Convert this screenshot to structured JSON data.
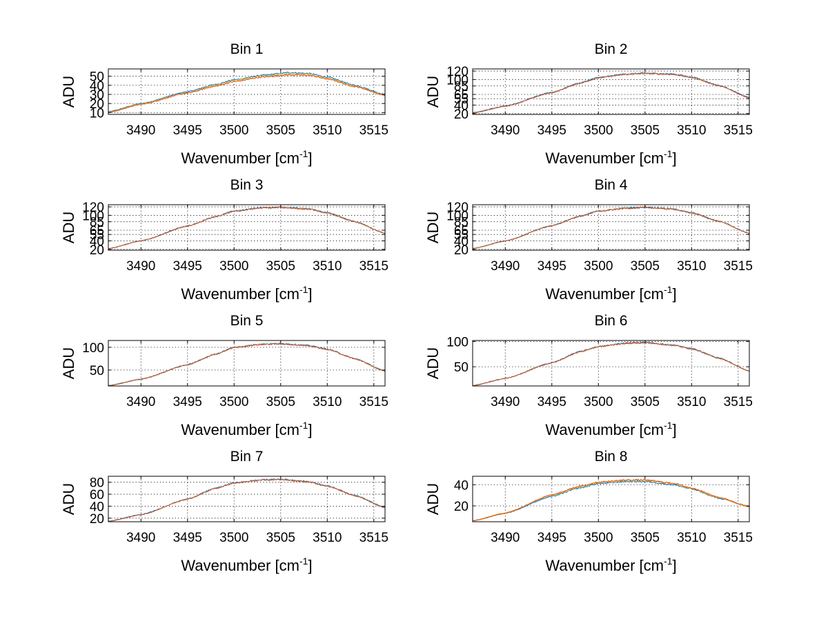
{
  "chart_data": [
    {
      "type": "line",
      "title": "Bin 1",
      "xlabel": "Wavenumber [cm",
      "xlabel_sup": "-1",
      "xlabel_close": "]",
      "ylabel": "ADU",
      "xlim": [
        3486.5,
        3516.2
      ],
      "ylim": [
        8,
        58
      ],
      "xticks": [
        3490,
        3495,
        3500,
        3505,
        3510,
        3515
      ],
      "yticks": [
        10,
        20,
        30,
        40,
        50
      ],
      "grid": true,
      "series": [
        {
          "color": "#0072bd",
          "x": [
            3486.5,
            3490,
            3495,
            3498,
            3500,
            3503,
            3506,
            3508,
            3510,
            3513,
            3516.2
          ],
          "y": [
            11,
            20,
            33,
            41,
            46,
            51,
            54,
            53,
            49,
            40,
            30
          ]
        },
        {
          "color": "#edb120",
          "x": [
            3486.5,
            3490,
            3495,
            3498,
            3500,
            3503,
            3506,
            3508,
            3510,
            3513,
            3516.2
          ],
          "y": [
            10.5,
            19.5,
            32,
            40,
            45,
            50,
            52.5,
            52,
            48,
            39,
            29.5
          ]
        },
        {
          "color": "#d95319",
          "x": [
            3486.5,
            3490,
            3495,
            3498,
            3500,
            3503,
            3506,
            3508,
            3510,
            3513,
            3516.2
          ],
          "y": [
            10,
            19,
            31.5,
            39,
            44,
            49,
            51.5,
            51,
            47,
            38.5,
            29
          ]
        }
      ]
    },
    {
      "type": "line",
      "title": "Bin 2",
      "xlabel": "Wavenumber [cm",
      "xlabel_sup": "-1",
      "xlabel_close": "]",
      "ylabel": "ADU",
      "xlim": [
        3486.5,
        3516.2
      ],
      "ylim": [
        18,
        125
      ],
      "xticks": [
        3490,
        3495,
        3500,
        3505,
        3510,
        3515
      ],
      "yticks": [
        20,
        40,
        55,
        65,
        85,
        100,
        120
      ],
      "grid": true,
      "series": [
        {
          "color": "#0072bd",
          "x": [
            3486.5,
            3490,
            3495,
            3498,
            3500,
            3503,
            3505,
            3508,
            3510,
            3513,
            3516.2
          ],
          "y": [
            22,
            38,
            70,
            92,
            105,
            113,
            115,
            113,
            106,
            86,
            58
          ]
        },
        {
          "color": "#d95319",
          "x": [
            3486.5,
            3490,
            3495,
            3498,
            3500,
            3503,
            3505,
            3508,
            3510,
            3513,
            3516.2
          ],
          "y": [
            21,
            37,
            69,
            91,
            104,
            112,
            114,
            112,
            105,
            85,
            57
          ]
        }
      ]
    },
    {
      "type": "line",
      "title": "Bin 3",
      "xlabel": "Wavenumber [cm",
      "xlabel_sup": "-1",
      "xlabel_close": "]",
      "ylabel": "ADU",
      "xlim": [
        3486.5,
        3516.2
      ],
      "ylim": [
        18,
        125
      ],
      "xticks": [
        3490,
        3495,
        3500,
        3505,
        3510,
        3515
      ],
      "yticks": [
        20,
        40,
        55,
        65,
        85,
        100,
        120
      ],
      "grid": true,
      "series": [
        {
          "color": "#0072bd",
          "x": [
            3486.5,
            3490,
            3495,
            3498,
            3500,
            3503,
            3505,
            3508,
            3510,
            3513,
            3516.2
          ],
          "y": [
            22,
            40,
            75,
            97,
            110,
            118,
            119,
            115,
            106,
            85,
            58
          ]
        },
        {
          "color": "#d95319",
          "x": [
            3486.5,
            3490,
            3495,
            3498,
            3500,
            3503,
            3505,
            3508,
            3510,
            3513,
            3516.2
          ],
          "y": [
            21.5,
            39.5,
            74.5,
            96.5,
            109.5,
            117.5,
            118.5,
            114.5,
            105.5,
            84.5,
            57.5
          ]
        }
      ]
    },
    {
      "type": "line",
      "title": "Bin 4",
      "xlabel": "Wavenumber [cm",
      "xlabel_sup": "-1",
      "xlabel_close": "]",
      "ylabel": "ADU",
      "xlim": [
        3486.5,
        3516.2
      ],
      "ylim": [
        18,
        125
      ],
      "xticks": [
        3490,
        3495,
        3500,
        3505,
        3510,
        3515
      ],
      "yticks": [
        20,
        40,
        55,
        65,
        85,
        100,
        120
      ],
      "grid": true,
      "series": [
        {
          "color": "#0072bd",
          "x": [
            3486.5,
            3490,
            3495,
            3498,
            3500,
            3503,
            3505,
            3508,
            3510,
            3513,
            3516.2
          ],
          "y": [
            22,
            40,
            76,
            98,
            110,
            117,
            119,
            115,
            106,
            86,
            58
          ]
        },
        {
          "color": "#d95319",
          "x": [
            3486.5,
            3490,
            3495,
            3498,
            3500,
            3503,
            3505,
            3508,
            3510,
            3513,
            3516.2
          ],
          "y": [
            21.5,
            39.5,
            75.5,
            97.5,
            109.5,
            116.5,
            118.5,
            114.5,
            105.5,
            85.5,
            57.5
          ]
        }
      ]
    },
    {
      "type": "line",
      "title": "Bin 5",
      "xlabel": "Wavenumber [cm",
      "xlabel_sup": "-1",
      "xlabel_close": "]",
      "ylabel": "ADU",
      "xlim": [
        3486.5,
        3516.2
      ],
      "ylim": [
        15,
        115
      ],
      "xticks": [
        3490,
        3495,
        3500,
        3505,
        3510,
        3515
      ],
      "yticks": [
        50,
        100
      ],
      "grid": true,
      "series": [
        {
          "color": "#0072bd",
          "x": [
            3486.5,
            3490,
            3495,
            3498,
            3500,
            3503,
            3505,
            3508,
            3510,
            3513,
            3516.2
          ],
          "y": [
            16,
            30,
            62,
            85,
            100,
            107,
            108,
            104,
            96,
            75,
            48
          ]
        },
        {
          "color": "#d95319",
          "x": [
            3486.5,
            3490,
            3495,
            3498,
            3500,
            3503,
            3505,
            3508,
            3510,
            3513,
            3516.2
          ],
          "y": [
            15.5,
            29.5,
            61.5,
            84.5,
            99.5,
            106.5,
            107.5,
            103.5,
            95.5,
            74.5,
            47.5
          ]
        }
      ]
    },
    {
      "type": "line",
      "title": "Bin 6",
      "xlabel": "Wavenumber [cm",
      "xlabel_sup": "-1",
      "xlabel_close": "]",
      "ylabel": "ADU",
      "xlim": [
        3486.5,
        3516.2
      ],
      "ylim": [
        12,
        102
      ],
      "xticks": [
        3490,
        3495,
        3500,
        3505,
        3510,
        3515
      ],
      "yticks": [
        50,
        100
      ],
      "grid": true,
      "series": [
        {
          "color": "#0072bd",
          "x": [
            3486.5,
            3490,
            3495,
            3498,
            3500,
            3503,
            3505,
            3508,
            3510,
            3513,
            3516.2
          ],
          "y": [
            13,
            27,
            58,
            80,
            90,
            97,
            98,
            93,
            86,
            67,
            42
          ]
        },
        {
          "color": "#d95319",
          "x": [
            3486.5,
            3490,
            3495,
            3498,
            3500,
            3503,
            3505,
            3508,
            3510,
            3513,
            3516.2
          ],
          "y": [
            12.5,
            26.5,
            57.5,
            79.5,
            89.5,
            96.5,
            97.5,
            92.5,
            85.5,
            66.5,
            41.5
          ]
        }
      ]
    },
    {
      "type": "line",
      "title": "Bin 7",
      "xlabel": "Wavenumber [cm",
      "xlabel_sup": "-1",
      "xlabel_close": "]",
      "ylabel": "ADU",
      "xlim": [
        3486.5,
        3516.2
      ],
      "ylim": [
        14,
        90
      ],
      "xticks": [
        3490,
        3495,
        3500,
        3505,
        3510,
        3515
      ],
      "yticks": [
        20,
        40,
        60,
        80
      ],
      "grid": true,
      "series": [
        {
          "color": "#0072bd",
          "x": [
            3486.5,
            3490,
            3495,
            3498,
            3500,
            3503,
            3505,
            3508,
            3510,
            3513,
            3516.2
          ],
          "y": [
            15,
            26,
            52,
            70,
            79,
            84,
            85,
            81,
            74,
            58,
            38
          ]
        },
        {
          "color": "#d95319",
          "x": [
            3486.5,
            3490,
            3495,
            3498,
            3500,
            3503,
            3505,
            3508,
            3510,
            3513,
            3516.2
          ],
          "y": [
            14.5,
            25.5,
            51.5,
            69.5,
            78.5,
            83.5,
            84.5,
            80.5,
            73.5,
            57.5,
            37.5
          ]
        }
      ]
    },
    {
      "type": "line",
      "title": "Bin 8",
      "xlabel": "Wavenumber [cm",
      "xlabel_sup": "-1",
      "xlabel_close": "]",
      "ylabel": "ADU",
      "xlim": [
        3486.5,
        3516.2
      ],
      "ylim": [
        5,
        48
      ],
      "xticks": [
        3490,
        3495,
        3500,
        3505,
        3510,
        3515
      ],
      "yticks": [
        20,
        40
      ],
      "grid": true,
      "series": [
        {
          "color": "#0072bd",
          "x": [
            3486.5,
            3490,
            3495,
            3498,
            3500,
            3503,
            3505,
            3508,
            3510,
            3513,
            3516.2
          ],
          "y": [
            6,
            13,
            29,
            37,
            41,
            43,
            43,
            40,
            36,
            27,
            19
          ]
        },
        {
          "color": "#edb120",
          "x": [
            3486.5,
            3490,
            3495,
            3498,
            3500,
            3503,
            3505,
            3508,
            3510,
            3513,
            3516.2
          ],
          "y": [
            6,
            13.5,
            30,
            38,
            42,
            44,
            44,
            41,
            36.5,
            27.5,
            19
          ]
        },
        {
          "color": "#d95319",
          "x": [
            3486.5,
            3490,
            3495,
            3498,
            3500,
            3503,
            3505,
            3508,
            3510,
            3513,
            3516.2
          ],
          "y": [
            5.8,
            13,
            30.5,
            38.5,
            42.5,
            44.5,
            44.5,
            41.5,
            37,
            28,
            19.5
          ]
        }
      ]
    }
  ]
}
